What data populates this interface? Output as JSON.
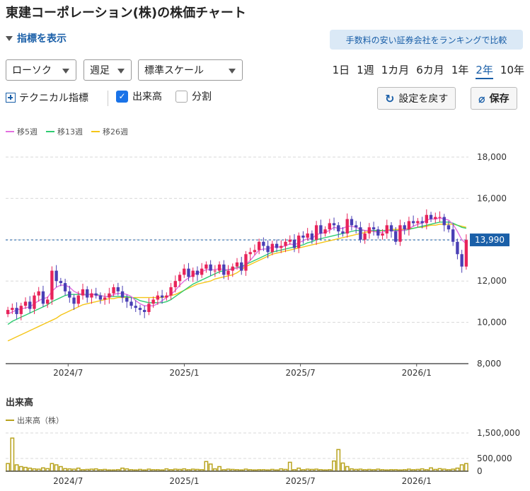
{
  "title": "東建コーポレーション(株)の株価チャート",
  "indicator_toggle": "指標を表示",
  "promo_link": "手数料の安い証券会社をランキングで比較",
  "controls": {
    "chart_type": "ローソク",
    "interval": "週足",
    "scale": "標準スケール",
    "periods": [
      "1日",
      "1週",
      "1カ月",
      "6カ月",
      "1年",
      "2年",
      "10年"
    ],
    "active_period": "2年",
    "technical": "テクニカル指標",
    "volume_checkbox": "出来高",
    "volume_checked": true,
    "split_checkbox": "分割",
    "split_checked": false,
    "reset_button": "設定を戻す",
    "save_button": "保存"
  },
  "colors": {
    "up": "#e8245a",
    "down": "#4a3fb5",
    "ma5": "#e36fe0",
    "ma13": "#2ecc71",
    "ma26": "#f5c518",
    "volume": "#b8a31e",
    "accent": "#1a5fa8",
    "price_tag": "#1a5fa8"
  },
  "chart_data": [
    {
      "type": "candlestick",
      "title": "",
      "legend": [
        "移5週",
        "移13週",
        "移26週"
      ],
      "legend_placement": "top-left",
      "x_tick_labels": [
        "2024/7",
        "2025/1",
        "2025/7",
        "2026/1"
      ],
      "y_tick_labels": [
        "18,000",
        "16,000",
        "14,000",
        "12,000",
        "10,000",
        "8,000"
      ],
      "ylim": [
        8000,
        18000
      ],
      "last_price": 13990,
      "last_price_label": "13,990",
      "grid": true,
      "series_close": [
        10600,
        10700,
        10400,
        10800,
        11000,
        10650,
        11300,
        11500,
        10900,
        11100,
        12500,
        12000,
        11900,
        11500,
        11200,
        10900,
        11300,
        11600,
        11200,
        11400,
        11300,
        11100,
        11200,
        11400,
        11700,
        11500,
        11200,
        11000,
        10800,
        10700,
        10600,
        10500,
        10900,
        11100,
        11300,
        11200,
        11300,
        11700,
        12000,
        12300,
        12600,
        12200,
        12500,
        12300,
        12600,
        12800,
        12500,
        12500,
        12800,
        12300,
        12500,
        12700,
        12900,
        12500,
        13300,
        13400,
        13500,
        13900,
        13700,
        13400,
        13800,
        13600,
        13700,
        13900,
        14000,
        13600,
        14200,
        14100,
        14300,
        14000,
        14700,
        14300,
        14500,
        14800,
        14700,
        14400,
        14300,
        15000,
        14700,
        14600,
        14000,
        14300,
        14600,
        14500,
        14200,
        14300,
        14700,
        14400,
        13900,
        14700,
        14500,
        14900,
        14800,
        14900,
        14800,
        15200,
        15000,
        15100,
        15100,
        14700,
        14500,
        13900,
        13300,
        12700,
        13990
      ],
      "ma5": [
        10400,
        10500,
        10600,
        10650,
        10700,
        10750,
        10900,
        11050,
        11150,
        11200,
        11500,
        11700,
        11800,
        11800,
        11700,
        11500,
        11400,
        11350,
        11300,
        11400,
        11300,
        11300,
        11250,
        11250,
        11350,
        11400,
        11400,
        11350,
        11250,
        11050,
        10900,
        10800,
        10800,
        10800,
        10900,
        11050,
        11200,
        11350,
        11550,
        11800,
        12000,
        12150,
        12300,
        12400,
        12450,
        12550,
        12550,
        12550,
        12600,
        12550,
        12550,
        12550,
        12650,
        12600,
        12800,
        13000,
        13250,
        13500,
        13550,
        13550,
        13650,
        13650,
        13650,
        13700,
        13800,
        13750,
        13850,
        13950,
        14050,
        14050,
        14250,
        14300,
        14350,
        14450,
        14600,
        14550,
        14550,
        14650,
        14650,
        14600,
        14500,
        14450,
        14450,
        14400,
        14350,
        14350,
        14450,
        14450,
        14400,
        14450,
        14450,
        14550,
        14650,
        14750,
        14800,
        14950,
        15000,
        15000,
        15050,
        15000,
        14950,
        14750,
        14400,
        14000,
        13800
      ],
      "ma13": [
        9900,
        10050,
        10150,
        10250,
        10350,
        10450,
        10550,
        10650,
        10750,
        10850,
        11000,
        11100,
        11200,
        11300,
        11350,
        11350,
        11350,
        11350,
        11350,
        11350,
        11350,
        11300,
        11250,
        11250,
        11250,
        11250,
        11250,
        11250,
        11200,
        11150,
        11050,
        11000,
        10950,
        10950,
        10950,
        10950,
        11000,
        11100,
        11250,
        11400,
        11550,
        11700,
        11850,
        11950,
        12050,
        12150,
        12250,
        12350,
        12450,
        12500,
        12550,
        12600,
        12650,
        12700,
        12800,
        12900,
        13000,
        13100,
        13200,
        13300,
        13400,
        13450,
        13500,
        13550,
        13600,
        13650,
        13700,
        13750,
        13850,
        13900,
        14000,
        14050,
        14100,
        14150,
        14200,
        14250,
        14300,
        14350,
        14400,
        14450,
        14450,
        14450,
        14450,
        14450,
        14450,
        14450,
        14450,
        14450,
        14450,
        14450,
        14450,
        14500,
        14550,
        14600,
        14650,
        14700,
        14750,
        14800,
        14850,
        14850,
        14850,
        14800,
        14700,
        14600,
        14550
      ],
      "ma26": [
        9100,
        9200,
        9300,
        9400,
        9500,
        9600,
        9700,
        9800,
        9900,
        10000,
        10100,
        10200,
        10350,
        10450,
        10550,
        10650,
        10750,
        10850,
        10900,
        10950,
        11000,
        11050,
        11100,
        11150,
        11150,
        11200,
        11200,
        11200,
        11200,
        11200,
        11200,
        11200,
        11200,
        11200,
        11200,
        11200,
        11250,
        11300,
        11350,
        11450,
        11550,
        11650,
        11750,
        11850,
        11900,
        11950,
        12000,
        12100,
        12150,
        12200,
        12250,
        12300,
        12400,
        12550,
        12700,
        12800,
        12900,
        13000,
        13100,
        13200,
        13300,
        13350,
        13400,
        13450,
        13500,
        13550,
        13600,
        13650,
        13700,
        13750,
        13800,
        13850,
        13900,
        13950,
        14000,
        14050,
        14100,
        14150,
        14200,
        14250,
        14300,
        14350,
        14400,
        14400,
        14400,
        14450,
        14450,
        14500,
        14500,
        14500,
        14500,
        14550,
        14550,
        14600,
        14600,
        14650,
        14700,
        14700,
        14750,
        14750,
        14750,
        14750,
        14700,
        14650,
        14600
      ]
    },
    {
      "type": "bar",
      "title": "出来高",
      "legend": [
        "出来高（株）"
      ],
      "x_tick_labels": [
        "2024/7",
        "2025/1",
        "2025/7",
        "2026/1"
      ],
      "y_tick_labels": [
        "1,500,000",
        "500,000",
        "0"
      ],
      "ylim": [
        0,
        1500000
      ],
      "values": [
        300000,
        1300000,
        250000,
        180000,
        150000,
        120000,
        90000,
        80000,
        130000,
        100000,
        300000,
        250000,
        180000,
        100000,
        90000,
        80000,
        120000,
        60000,
        70000,
        80000,
        90000,
        60000,
        70000,
        50000,
        50000,
        60000,
        120000,
        90000,
        60000,
        50000,
        70000,
        50000,
        80000,
        60000,
        60000,
        50000,
        90000,
        60000,
        80000,
        70000,
        90000,
        60000,
        80000,
        70000,
        60000,
        380000,
        280000,
        90000,
        180000,
        60000,
        80000,
        70000,
        60000,
        50000,
        80000,
        60000,
        50000,
        60000,
        60000,
        50000,
        70000,
        50000,
        90000,
        70000,
        350000,
        60000,
        120000,
        60000,
        80000,
        70000,
        80000,
        60000,
        50000,
        60000,
        400000,
        850000,
        320000,
        180000,
        90000,
        70000,
        80000,
        60000,
        70000,
        60000,
        80000,
        60000,
        50000,
        60000,
        60000,
        50000,
        60000,
        80000,
        60000,
        70000,
        90000,
        60000,
        130000,
        70000,
        100000,
        80000,
        60000,
        80000,
        120000,
        250000,
        300000
      ]
    }
  ]
}
